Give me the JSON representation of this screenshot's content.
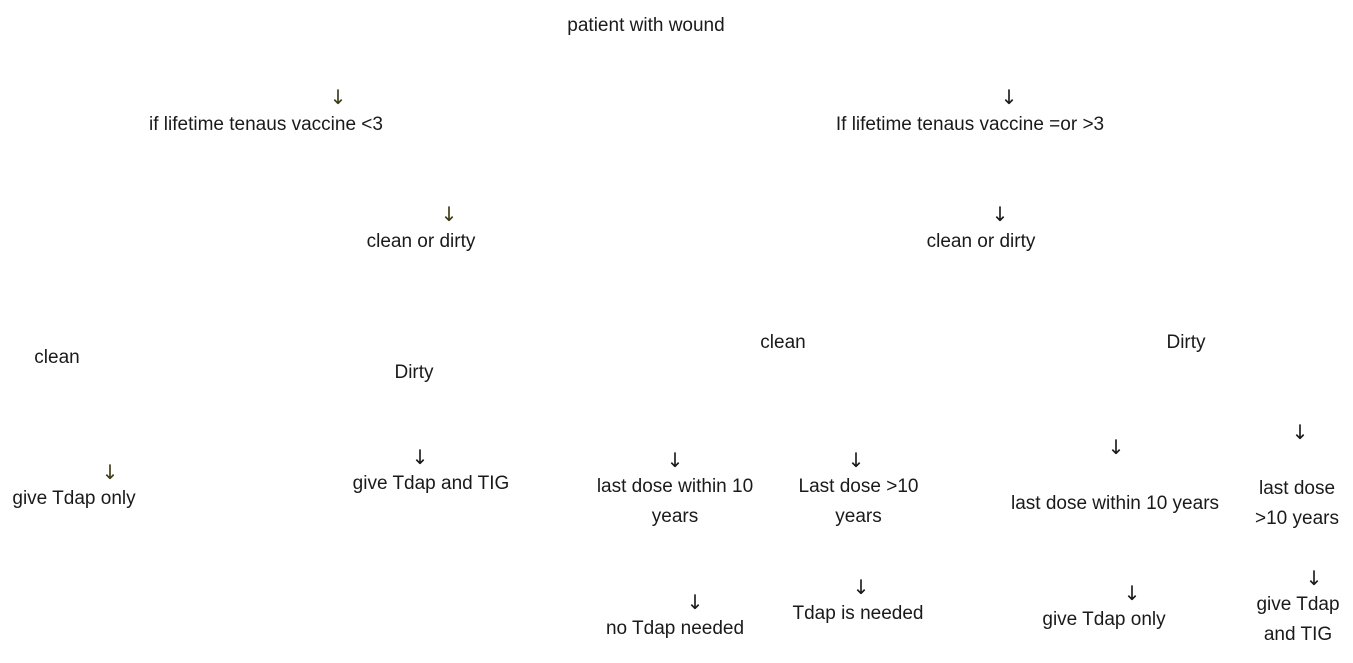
{
  "root": {
    "label": "patient with wound"
  },
  "arrow_glyph": "↓",
  "left_branch": {
    "condition": "if lifetime tenaus vaccine <3",
    "wound_type": "clean or dirty",
    "clean": {
      "label": "clean",
      "action": "give Tdap only"
    },
    "dirty": {
      "label": "Dirty",
      "action": "give Tdap and TIG"
    }
  },
  "right_branch": {
    "condition": "If lifetime tenaus vaccine =or >3",
    "wound_type": "clean or dirty",
    "clean": {
      "label": "clean",
      "within": {
        "label": "last dose within 10 years",
        "action": "no Tdap needed"
      },
      "over": {
        "label": "Last dose >10 years",
        "action": "Tdap is needed"
      }
    },
    "dirty": {
      "label": "Dirty",
      "within": {
        "label": "last dose within 10 years",
        "action": "give Tdap only"
      },
      "over": {
        "label": "last dose >10 years",
        "action": "give Tdap and TIG"
      }
    }
  }
}
